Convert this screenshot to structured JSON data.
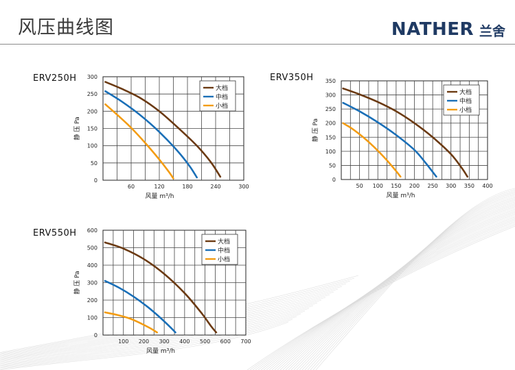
{
  "page": {
    "title": "风压曲线图",
    "brand_en": "NATHER",
    "brand_cn": "兰舍",
    "brand_color": "#1f3a63"
  },
  "series_colors": {
    "大档": "#6b3a12",
    "中档": "#1a6fb7",
    "小档": "#f39c12"
  },
  "chart_data": [
    {
      "type": "line",
      "title": "ERV250H",
      "xlabel": "风量 m³/h",
      "ylabel": "静 压 Pa",
      "xlim": [
        0,
        300
      ],
      "ylim": [
        0,
        300
      ],
      "xticks": [
        60,
        120,
        180,
        240,
        300
      ],
      "yticks": [
        0,
        50,
        100,
        150,
        200,
        250,
        300
      ],
      "grid": true,
      "legend_position": "top-right",
      "series": [
        {
          "name": "大档",
          "points": [
            [
              5,
              285
            ],
            [
              40,
              265
            ],
            [
              80,
              238
            ],
            [
              120,
              200
            ],
            [
              160,
              152
            ],
            [
              200,
              100
            ],
            [
              230,
              52
            ],
            [
              250,
              10
            ]
          ]
        },
        {
          "name": "中档",
          "points": [
            [
              5,
              258
            ],
            [
              40,
              228
            ],
            [
              80,
              188
            ],
            [
              120,
              140
            ],
            [
              160,
              83
            ],
            [
              185,
              40
            ],
            [
              200,
              8
            ]
          ]
        },
        {
          "name": "小档",
          "points": [
            [
              5,
              220
            ],
            [
              30,
              190
            ],
            [
              60,
              152
            ],
            [
              90,
              108
            ],
            [
              120,
              60
            ],
            [
              140,
              25
            ],
            [
              150,
              5
            ]
          ]
        }
      ]
    },
    {
      "type": "line",
      "title": "ERV350H",
      "xlabel": "风量 m³/h",
      "ylabel": "静 压 Pa",
      "xlim": [
        0,
        400
      ],
      "ylim": [
        0,
        350
      ],
      "xticks": [
        50,
        100,
        150,
        200,
        250,
        300,
        350,
        400
      ],
      "yticks": [
        0,
        50,
        100,
        150,
        200,
        250,
        300,
        350
      ],
      "grid": true,
      "legend_position": "top-right",
      "series": [
        {
          "name": "大档",
          "points": [
            [
              5,
              323
            ],
            [
              50,
              302
            ],
            [
              100,
              275
            ],
            [
              150,
              242
            ],
            [
              200,
              200
            ],
            [
              250,
              150
            ],
            [
              300,
              90
            ],
            [
              330,
              40
            ],
            [
              345,
              10
            ]
          ]
        },
        {
          "name": "中档",
          "points": [
            [
              5,
              272
            ],
            [
              50,
              242
            ],
            [
              100,
              203
            ],
            [
              150,
              158
            ],
            [
              200,
              105
            ],
            [
              230,
              60
            ],
            [
              260,
              10
            ]
          ]
        },
        {
          "name": "小档",
          "points": [
            [
              5,
              200
            ],
            [
              30,
              180
            ],
            [
              60,
              150
            ],
            [
              90,
              115
            ],
            [
              120,
              75
            ],
            [
              150,
              30
            ],
            [
              162,
              10
            ]
          ]
        }
      ]
    },
    {
      "type": "line",
      "title": "ERV550H",
      "xlabel": "风量 m³/h",
      "ylabel": "静 压 Pa",
      "xlim": [
        0,
        700
      ],
      "ylim": [
        0,
        600
      ],
      "xticks": [
        100,
        200,
        300,
        400,
        500,
        600,
        700
      ],
      "yticks": [
        0,
        100,
        200,
        300,
        400,
        500,
        600
      ],
      "grid": true,
      "legend_position": "top-right",
      "series": [
        {
          "name": "大档",
          "points": [
            [
              10,
              530
            ],
            [
              100,
              495
            ],
            [
              200,
              435
            ],
            [
              300,
              350
            ],
            [
              400,
              240
            ],
            [
              480,
              130
            ],
            [
              530,
              50
            ],
            [
              555,
              15
            ]
          ]
        },
        {
          "name": "中档",
          "points": [
            [
              10,
              310
            ],
            [
              80,
              270
            ],
            [
              150,
              220
            ],
            [
              220,
              160
            ],
            [
              280,
              100
            ],
            [
              330,
              45
            ],
            [
              355,
              15
            ]
          ]
        },
        {
          "name": "小档",
          "points": [
            [
              10,
              130
            ],
            [
              70,
              115
            ],
            [
              130,
              95
            ],
            [
              180,
              70
            ],
            [
              230,
              40
            ],
            [
              265,
              15
            ]
          ]
        }
      ]
    }
  ]
}
